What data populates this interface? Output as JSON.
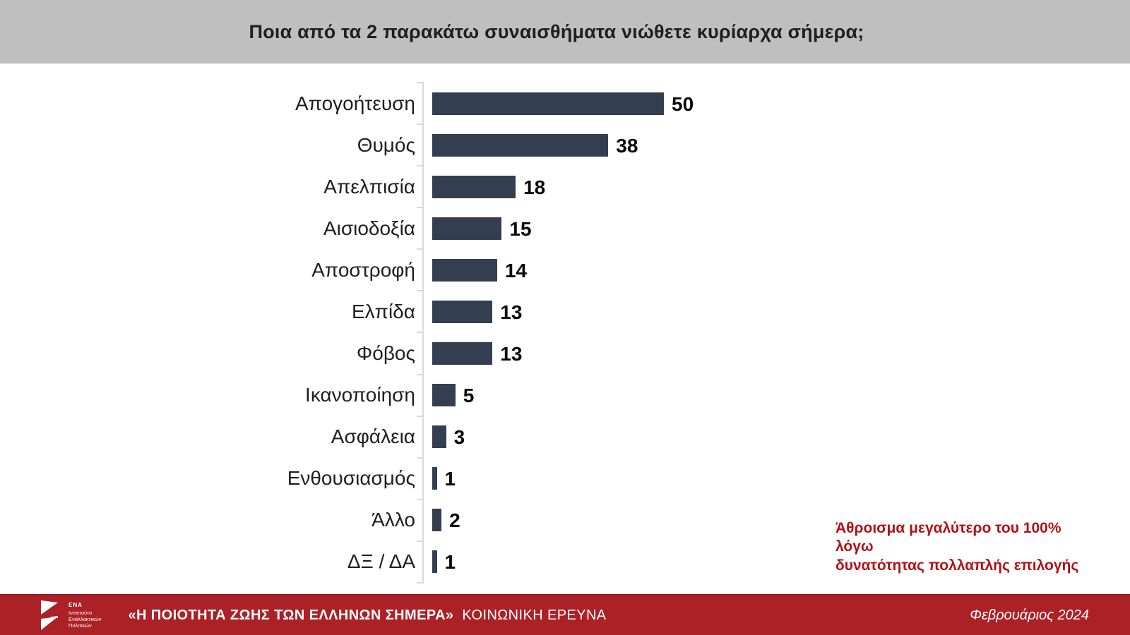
{
  "chart_data": {
    "type": "bar",
    "orientation": "horizontal",
    "title": "Ποια από τα 2 παρακάτω συναισθήματα νιώθετε κυρίαρχα σήμερα;",
    "categories": [
      "Απογοήτευση",
      "Θυμός",
      "Απελπισία",
      "Αισιοδοξία",
      "Αποστροφή",
      "Ελπίδα",
      "Φόβος",
      "Ικανοποίηση",
      "Ασφάλεια",
      "Ενθουσιασμός",
      "Άλλο",
      "ΔΞ / ΔΑ"
    ],
    "values": [
      50,
      38,
      18,
      15,
      14,
      13,
      13,
      5,
      3,
      1,
      2,
      1
    ],
    "xlim": [
      0,
      50
    ],
    "grid": false,
    "legend": false,
    "value_labels": true,
    "bar_color": "#333F50",
    "axis_color": "#D9D9D9",
    "annotation": {
      "lines": [
        "Άθροισμα μεγαλύτερο του 100% λόγω",
        "δυνατότητας πολλαπλής επιλογής"
      ],
      "color": "#B11116"
    }
  },
  "header": {
    "background": "#BFBFBF"
  },
  "footer": {
    "background": "#AC2125",
    "logo_name": "ΕΝΑ",
    "logo_subtext": "Ινστιτούτο\nΕναλλακτικών\nΠολιτικών",
    "survey_title": "«Η ΠΟΙΟΤΗΤΑ ΖΩΗΣ ΤΩΝ ΕΛΛΗΝΩΝ ΣΗΜΕΡΑ»",
    "survey_subtitle": "ΚΟΙΝΩΝΙΚΗ ΕΡΕΥΝΑ",
    "date": "Φεβρουάριος 2024"
  }
}
